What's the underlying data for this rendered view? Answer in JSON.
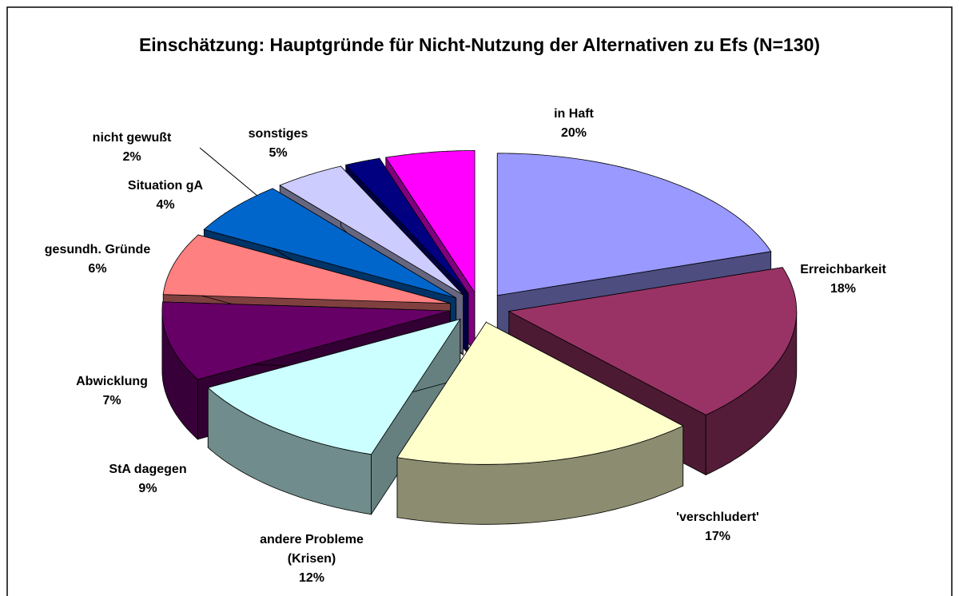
{
  "chart_data": {
    "type": "pie3d",
    "title": "Einschätzung: Hauptgründe für Nicht-Nutzung der Alternativen zu Efs (N=130)",
    "categories": [
      "in Haft",
      "Erreichbarkeit",
      "'verschludert'",
      "andere Probleme (Krisen)",
      "StA dagegen",
      "Abwicklung",
      "gesundh. Gründe",
      "Situation gA",
      "nicht gewußt",
      "sonstiges"
    ],
    "values": [
      20,
      18,
      17,
      12,
      9,
      7,
      6,
      4,
      2,
      5
    ],
    "value_labels": [
      "20%",
      "18%",
      "17%",
      "12%",
      "9%",
      "7%",
      "6%",
      "4%",
      "2%",
      "5%"
    ],
    "colors": [
      "#9999ff",
      "#993366",
      "#ffffcc",
      "#ccffff",
      "#660066",
      "#ff8080",
      "#0066cc",
      "#ccccff",
      "#000080",
      "#ff00ff"
    ]
  }
}
